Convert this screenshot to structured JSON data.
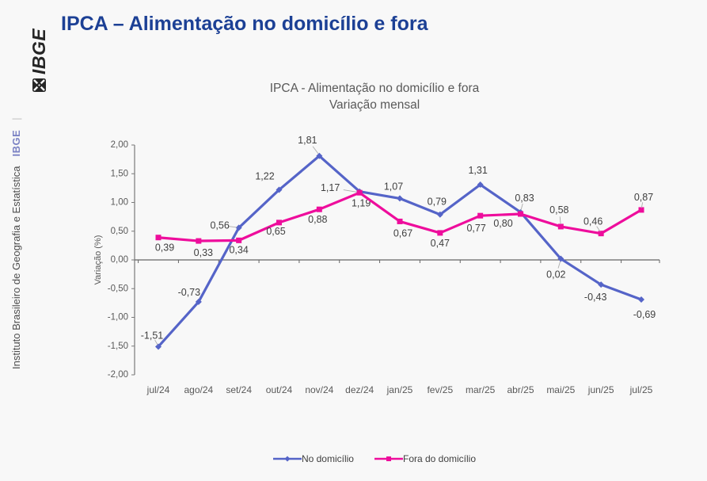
{
  "sidebar": {
    "logo_text": "IBGE",
    "divider": "|",
    "brand": "IBGE",
    "institute": "Instituto Brasileiro de Geografia e Estatística"
  },
  "header": {
    "title": "IPCA – Alimentação no domicílio e fora"
  },
  "chart_data": {
    "type": "line",
    "title": "IPCA - Alimentação no domicílio e fora",
    "subtitle": "Variação mensal",
    "xlabel": "",
    "ylabel": "Variação (%)",
    "ylim": [
      -2.0,
      2.0
    ],
    "ytick_step": 0.5,
    "decimal_separator": "comma",
    "grid": false,
    "legend_position": "bottom",
    "categories": [
      "jul/24",
      "ago/24",
      "set/24",
      "out/24",
      "nov/24",
      "dez/24",
      "jan/25",
      "fev/25",
      "mar/25",
      "abr/25",
      "mai/25",
      "jun/25",
      "jul/25"
    ],
    "series": [
      {
        "name": "No domicílio",
        "color": "#5564C8",
        "marker": "diamond",
        "values": [
          -1.51,
          -0.73,
          0.56,
          1.22,
          1.81,
          1.19,
          1.07,
          0.79,
          1.31,
          0.83,
          0.02,
          -0.43,
          -0.69
        ]
      },
      {
        "name": "Fora do domicílio",
        "color": "#EE0D9C",
        "marker": "square",
        "values": [
          0.39,
          0.33,
          0.34,
          0.65,
          0.88,
          1.17,
          0.67,
          0.47,
          0.77,
          0.8,
          0.58,
          0.46,
          0.87
        ]
      }
    ]
  },
  "colors": {
    "background": "#F8F8F8",
    "title_navy": "#1C4095",
    "text_gray": "#595959",
    "data_label": "#3F3F3F",
    "axis_line": "#7A7A7A",
    "leader_line": "#ABABAB",
    "brand_blue": "#7B82C4",
    "logo_black": "#262626"
  }
}
